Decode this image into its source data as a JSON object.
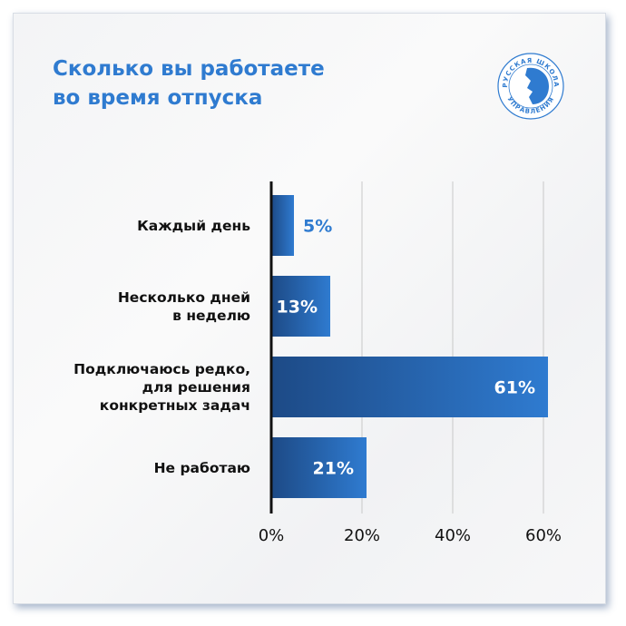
{
  "title_lines": [
    "Сколько вы работаете",
    "во время отпуска"
  ],
  "logo": {
    "text_top": "РУССКАЯ ШКОЛА",
    "text_bottom": "УПРАВЛЕНИЯ",
    "color": "#2f7bd0"
  },
  "chart_data": {
    "type": "bar",
    "orientation": "horizontal",
    "title": "Сколько вы работаете во время отпуска",
    "categories": [
      "Каждый день",
      "Несколько дней\nв неделю",
      "Подключаюсь редко,\nдля решения\nконкретных задач",
      "Не работаю"
    ],
    "values": [
      5,
      13,
      61,
      21
    ],
    "data_labels": [
      "5%",
      "13%",
      "61%",
      "21%"
    ],
    "xlim": [
      0,
      60
    ],
    "xticks": [
      "0%",
      "20%",
      "40%",
      "60%"
    ],
    "grid": true,
    "colors": {
      "bar_dark": "#1d4a86",
      "bar_light": "#2f7bd0",
      "label_outside": "#2f7bd0",
      "label_inside": "#ffffff"
    }
  }
}
